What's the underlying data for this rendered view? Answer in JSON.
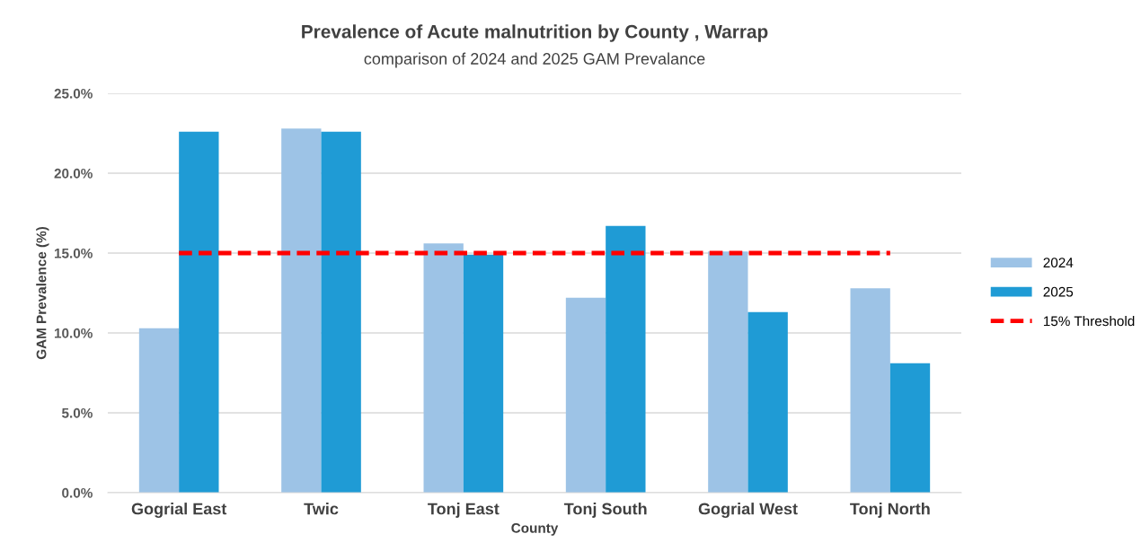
{
  "chart_data": {
    "type": "bar",
    "title": "Prevalence of Acute malnutrition by County , Warrap",
    "subtitle": "comparison of 2024 and 2025 GAM Prevalance",
    "xlabel": "County",
    "ylabel": "GAM Prevalence (%)",
    "categories": [
      "Gogrial East",
      "Twic",
      "Tonj East",
      "Tonj South",
      "Gogrial West",
      "Tonj North"
    ],
    "series": [
      {
        "name": "2024",
        "color": "#9dc3e6",
        "values": [
          10.3,
          22.8,
          15.6,
          12.2,
          15.1,
          12.8
        ]
      },
      {
        "name": "2025",
        "color": "#1f9bd5",
        "values": [
          22.6,
          22.6,
          14.9,
          16.7,
          11.3,
          8.1
        ]
      },
      {
        "name": "15% Threshold",
        "type": "line",
        "color": "#ff0000",
        "line_style": "dashed",
        "values": [
          15,
          15,
          15,
          15,
          15,
          15
        ]
      }
    ],
    "ylim": [
      0,
      25
    ],
    "yticks": [
      {
        "value": 0,
        "label": "0.0%"
      },
      {
        "value": 5,
        "label": "5.0%"
      },
      {
        "value": 10,
        "label": "10.0%"
      },
      {
        "value": 15,
        "label": "15.0%"
      },
      {
        "value": 20,
        "label": "20.0%"
      },
      {
        "value": 25,
        "label": "25.0%"
      }
    ],
    "grid": "y",
    "legend": "right"
  }
}
